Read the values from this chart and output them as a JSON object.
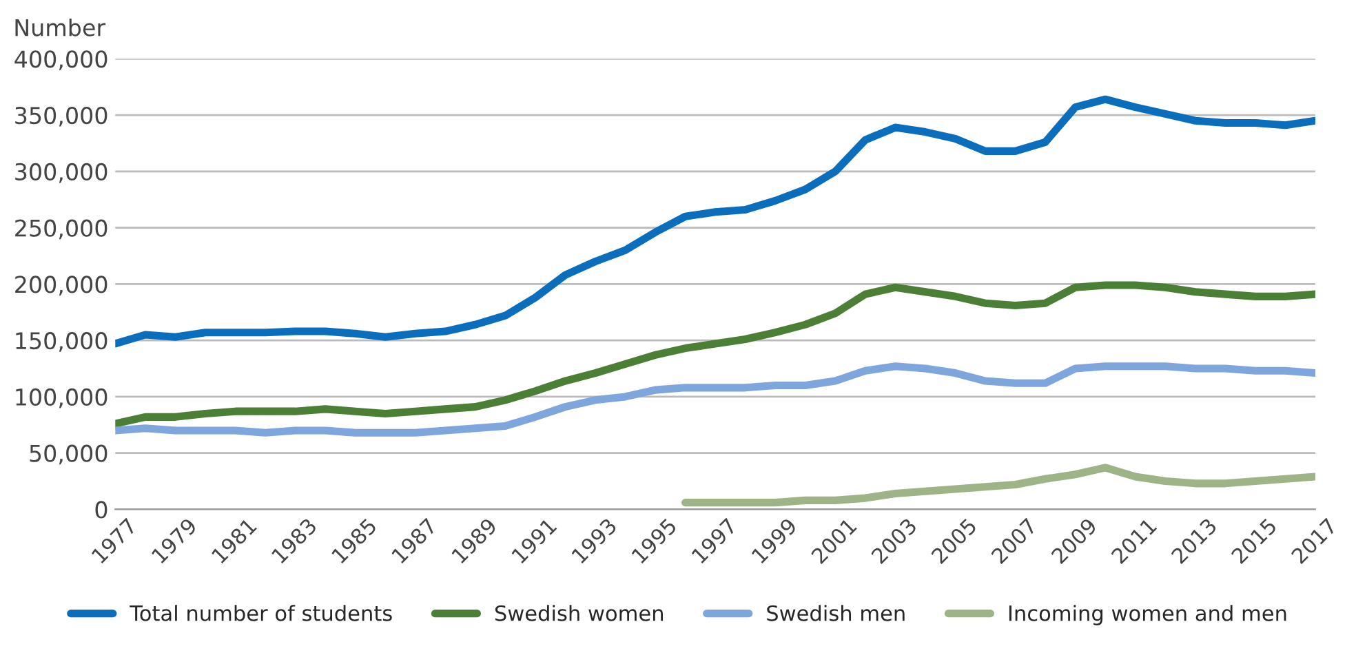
{
  "chart_data": {
    "type": "line",
    "ylabel": "Number",
    "x": [
      1977,
      1978,
      1979,
      1980,
      1981,
      1982,
      1983,
      1984,
      1985,
      1986,
      1987,
      1988,
      1989,
      1990,
      1991,
      1992,
      1993,
      1994,
      1995,
      1996,
      1997,
      1998,
      1999,
      2000,
      2001,
      2002,
      2003,
      2004,
      2005,
      2006,
      2007,
      2008,
      2009,
      2010,
      2011,
      2012,
      2013,
      2014,
      2015,
      2016,
      2017
    ],
    "series": [
      {
        "name": "Total number of students",
        "color": "#0a6ebd",
        "values": [
          147000,
          155000,
          153000,
          157000,
          157000,
          157000,
          158000,
          158000,
          156000,
          153000,
          156000,
          158000,
          164000,
          172000,
          188000,
          208000,
          220000,
          230000,
          246000,
          260000,
          264000,
          266000,
          274000,
          284000,
          300000,
          328000,
          339000,
          335000,
          329000,
          318000,
          318000,
          326000,
          357000,
          364000,
          357000,
          351000,
          345000,
          343000,
          343000,
          341000,
          345000
        ]
      },
      {
        "name": "Swedish women",
        "color": "#4a7f35",
        "values": [
          76000,
          82000,
          82000,
          85000,
          87000,
          87000,
          87000,
          89000,
          87000,
          85000,
          87000,
          89000,
          91000,
          97000,
          105000,
          114000,
          121000,
          129000,
          137000,
          143000,
          147000,
          151000,
          157000,
          164000,
          174000,
          191000,
          197000,
          193000,
          189000,
          183000,
          181000,
          183000,
          197000,
          199000,
          199000,
          197000,
          193000,
          191000,
          189000,
          189000,
          191000
        ]
      },
      {
        "name": "Swedish men",
        "color": "#7fa6dc",
        "values": [
          70000,
          72000,
          70000,
          70000,
          70000,
          68000,
          70000,
          70000,
          68000,
          68000,
          68000,
          70000,
          72000,
          74000,
          82000,
          91000,
          97000,
          100000,
          106000,
          108000,
          108000,
          108000,
          110000,
          110000,
          114000,
          123000,
          127000,
          125000,
          121000,
          114000,
          112000,
          112000,
          125000,
          127000,
          127000,
          127000,
          125000,
          125000,
          123000,
          123000,
          121000
        ]
      },
      {
        "name": "Incoming women and men",
        "color": "#9db486",
        "values": [
          null,
          null,
          null,
          null,
          null,
          null,
          null,
          null,
          null,
          null,
          null,
          null,
          null,
          null,
          null,
          null,
          null,
          null,
          null,
          6000,
          6000,
          6000,
          6000,
          8000,
          8000,
          10000,
          14000,
          16000,
          18000,
          20000,
          22000,
          27000,
          31000,
          37000,
          29000,
          25000,
          23000,
          23000,
          25000,
          27000,
          29000
        ]
      }
    ],
    "xlim": [
      1977,
      2017
    ],
    "xticks": [
      1977,
      1979,
      1981,
      1983,
      1985,
      1987,
      1989,
      1991,
      1993,
      1995,
      1997,
      1999,
      2001,
      2003,
      2005,
      2007,
      2009,
      2011,
      2013,
      2015,
      2017
    ],
    "ylim": [
      0,
      400000
    ],
    "yticks": [
      {
        "value": 0,
        "label": "0"
      },
      {
        "value": 50000,
        "label": "50,000"
      },
      {
        "value": 100000,
        "label": "100,000"
      },
      {
        "value": 150000,
        "label": "150,000"
      },
      {
        "value": 200000,
        "label": "200,000"
      },
      {
        "value": 250000,
        "label": "250,000"
      },
      {
        "value": 300000,
        "label": "300,000"
      },
      {
        "value": 350000,
        "label": "350,000"
      },
      {
        "value": 400000,
        "label": "400,000"
      }
    ],
    "grid": "y",
    "legend": "bottom",
    "marker": "none",
    "line_style": "solid"
  }
}
